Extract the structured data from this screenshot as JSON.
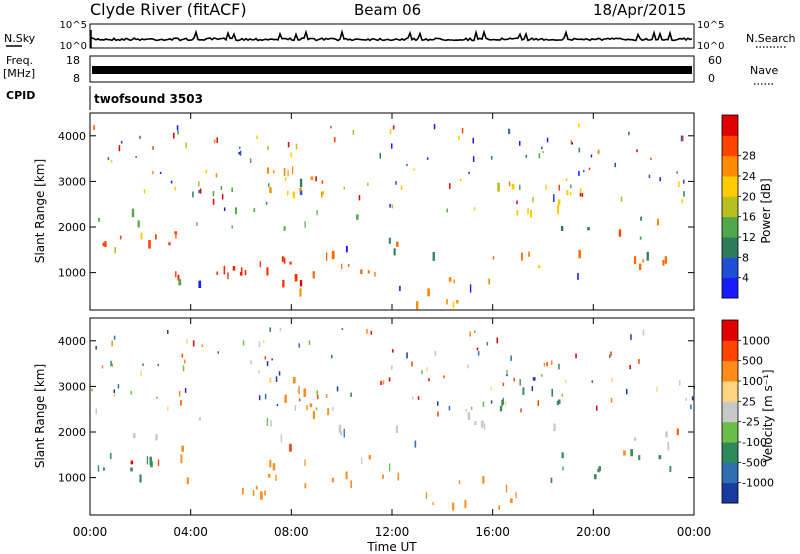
{
  "header": {
    "station": "Clyde River (fitACF)",
    "beam": "Beam 06",
    "date": "18/Apr/2015"
  },
  "top_panels": {
    "nsky_label": "N.Sky",
    "nsearch_label": "N.Search",
    "nsky_ticks": [
      "10^5",
      "10^0"
    ],
    "nsearch_ticks": [
      "10^5",
      "10^0"
    ],
    "freq_label": "Freq.",
    "freq_unit": "[MHz]",
    "freq_ticks": [
      "18",
      "8"
    ],
    "nave_label": "Nave",
    "nave_ticks": [
      "60",
      "0"
    ],
    "cpid_label": "CPID",
    "cpid_value": "twofsound 3503"
  },
  "chart_data": [
    {
      "type": "heatmap",
      "ylabel": "Slant Range [km]",
      "ylim": [
        180,
        4500
      ],
      "y_ticks": [
        "1000",
        "2000",
        "3000",
        "4000"
      ],
      "y_tick_values": [
        1000,
        2000,
        3000,
        4000
      ],
      "x_ticks": [
        "00:00",
        "04:00",
        "08:00",
        "12:00",
        "16:00",
        "20:00",
        "00:00"
      ],
      "x_tick_values_hours": [
        0,
        4,
        8,
        12,
        16,
        20,
        24
      ],
      "colorbar_label": "Power [dB]",
      "colorbar_ticks": [
        "4",
        "8",
        "12",
        "16",
        "20",
        "24",
        "28"
      ],
      "colorbar_colors": [
        "#1a1aff",
        "#1f4fd6",
        "#2d7d5a",
        "#4fa84a",
        "#b8c020",
        "#ffcc00",
        "#ff8c00",
        "#ff4500",
        "#e00000"
      ],
      "bands": [
        {
          "t0": 0.3,
          "t1": 4,
          "r0": 1500,
          "r1": 1900,
          "c": "#ff4500"
        },
        {
          "t0": 3,
          "t1": 6,
          "r0": 700,
          "r1": 1300,
          "c": "#ff2000"
        },
        {
          "t0": 6,
          "t1": 8.5,
          "r0": 600,
          "r1": 1400,
          "c": "#ff3000"
        },
        {
          "t0": 8.5,
          "t1": 12.5,
          "r0": 900,
          "r1": 1700,
          "c": "#ff6a00"
        },
        {
          "t0": 0.3,
          "t1": 11,
          "r0": 1900,
          "r1": 2400,
          "c": "#4fa84a"
        },
        {
          "t0": 11,
          "t1": 24,
          "r0": 1400,
          "r1": 2300,
          "c": "#2d7d5a"
        },
        {
          "t0": 12,
          "t1": 16,
          "r0": 300,
          "r1": 900,
          "c": "#ff8c00"
        },
        {
          "t0": 16,
          "t1": 24,
          "r0": 800,
          "r1": 1500,
          "c": "#ff6a00"
        },
        {
          "t0": 7,
          "t1": 9.5,
          "r0": 2400,
          "r1": 3300,
          "c": "#ff8c00"
        },
        {
          "t0": 16,
          "t1": 19,
          "r0": 2300,
          "r1": 3000,
          "c": "#ffcc00"
        }
      ]
    },
    {
      "type": "heatmap",
      "ylabel": "Slant Range [km]",
      "ylim": [
        180,
        4500
      ],
      "y_ticks": [
        "1000",
        "2000",
        "3000",
        "4000"
      ],
      "y_tick_values": [
        1000,
        2000,
        3000,
        4000
      ],
      "x_ticks": [
        "00:00",
        "04:00",
        "08:00",
        "12:00",
        "16:00",
        "20:00",
        "00:00"
      ],
      "x_tick_values_hours": [
        0,
        4,
        8,
        12,
        16,
        20,
        24
      ],
      "xlabel": "Time UT",
      "colorbar_label": "Velocity [m s⁻¹]",
      "colorbar_ticks": [
        "1000",
        "500",
        "100",
        "25",
        "-25",
        "-100",
        "-500",
        "-1000"
      ],
      "colorbar_colors": [
        "#1a3aa0",
        "#2e6fb0",
        "#2e8a5a",
        "#6ac04a",
        "#c8c8c8",
        "#ffd480",
        "#ff8c1a",
        "#ff4500",
        "#e00000"
      ],
      "bands": [
        {
          "t0": 0.3,
          "t1": 11,
          "r0": 1500,
          "r1": 2400,
          "c": "#c8c8c8"
        },
        {
          "t0": 0.3,
          "t1": 3.5,
          "r0": 900,
          "r1": 1500,
          "c": "#3d8a5e"
        },
        {
          "t0": 3.5,
          "t1": 7.5,
          "r0": 600,
          "r1": 1700,
          "c": "#ff8c1a"
        },
        {
          "t0": 8.5,
          "t1": 12.5,
          "r0": 700,
          "r1": 1500,
          "c": "#ff8c1a"
        },
        {
          "t0": 12,
          "t1": 24,
          "r0": 1600,
          "r1": 2400,
          "c": "#c8c8c8"
        },
        {
          "t0": 18,
          "t1": 24,
          "r0": 800,
          "r1": 1600,
          "c": "#3d8a5e"
        },
        {
          "t0": 13,
          "t1": 17,
          "r0": 300,
          "r1": 1000,
          "c": "#ff8c1a"
        },
        {
          "t0": 16,
          "t1": 19,
          "r0": 2500,
          "r1": 3200,
          "c": "#3d8a5e"
        },
        {
          "t0": 7,
          "t1": 9.5,
          "r0": 2400,
          "r1": 3300,
          "c": "#ff8c1a"
        }
      ]
    }
  ]
}
